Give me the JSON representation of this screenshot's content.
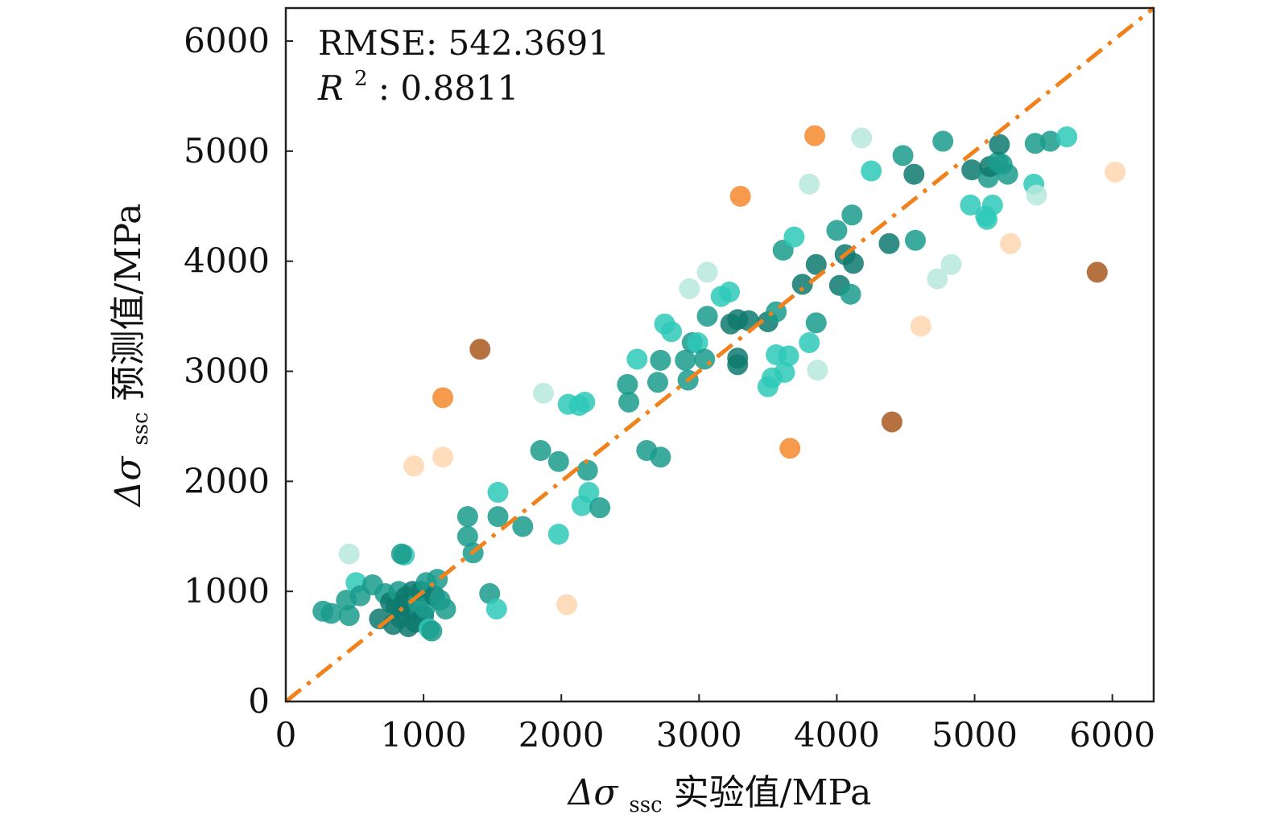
{
  "chart_data": {
    "type": "scatter",
    "xlim": [
      0,
      6300
    ],
    "ylim": [
      0,
      6300
    ],
    "x_ticks": [
      0,
      1000,
      2000,
      3000,
      4000,
      5000,
      6000
    ],
    "y_ticks": [
      0,
      1000,
      2000,
      3000,
      4000,
      5000,
      6000
    ],
    "x_tick_labels": [
      "0",
      "1000",
      "2000",
      "3000",
      "4000",
      "5000",
      "6000"
    ],
    "y_tick_labels": [
      "0",
      "1000",
      "2000",
      "3000",
      "4000",
      "5000",
      "6000"
    ],
    "xlabel": {
      "delta": "Δσ",
      "sub": "ssc",
      "text": " 实验值/MPa"
    },
    "ylabel": {
      "delta": "Δσ",
      "sub": "ssc",
      "text": " 预测值/MPa"
    },
    "annotations": {
      "rmse_label": "RMSE: 542.3691",
      "r2_symbol": "R",
      "r2_sup": "2",
      "r2_value": ": 0.8811"
    },
    "reference_line": {
      "style": "dash-dot",
      "color": "#f0821e",
      "from": [
        0,
        0
      ],
      "to": [
        6300,
        6300
      ]
    },
    "colors": {
      "c1": "#0e7a6e",
      "c2": "#1a9b8c",
      "c3": "#2ec9b8",
      "c4": "#b7e9dc",
      "o1": "#f58a2e",
      "o2": "#f3a46a",
      "o3": "#fed6b0",
      "o4": "#a9581e"
    },
    "points": [
      {
        "x": 1000,
        "y": 600,
        "c": "c1"
      },
      {
        "x": 1500,
        "y": 820,
        "c": "c3"
      }
    ],
    "points_all": [
      [
        270,
        820,
        "c2"
      ],
      [
        330,
        800,
        "c2"
      ],
      [
        440,
        920,
        "c2"
      ],
      [
        460,
        780,
        "c2"
      ],
      [
        460,
        1340,
        "c4"
      ],
      [
        510,
        1080,
        "c3"
      ],
      [
        540,
        960,
        "c2"
      ],
      [
        630,
        1060,
        "c2"
      ],
      [
        680,
        750,
        "c1"
      ],
      [
        720,
        980,
        "c2"
      ],
      [
        760,
        900,
        "c1"
      ],
      [
        780,
        700,
        "c1"
      ],
      [
        800,
        860,
        "c1"
      ],
      [
        820,
        1000,
        "c2"
      ],
      [
        830,
        760,
        "c1"
      ],
      [
        850,
        880,
        "c1"
      ],
      [
        860,
        1330,
        "c3"
      ],
      [
        840,
        1340,
        "c2"
      ],
      [
        870,
        950,
        "c1"
      ],
      [
        890,
        680,
        "c1"
      ],
      [
        900,
        820,
        "c1"
      ],
      [
        920,
        1000,
        "c1"
      ],
      [
        940,
        720,
        "c1"
      ],
      [
        960,
        900,
        "c2"
      ],
      [
        980,
        1000,
        "c1"
      ],
      [
        1000,
        780,
        "c1"
      ],
      [
        1010,
        850,
        "c2"
      ],
      [
        1020,
        1080,
        "c2"
      ],
      [
        1040,
        660,
        "c3"
      ],
      [
        1060,
        640,
        "c2"
      ],
      [
        1080,
        960,
        "c1"
      ],
      [
        1100,
        1110,
        "c2"
      ],
      [
        1120,
        920,
        "c2"
      ],
      [
        1160,
        840,
        "c2"
      ],
      [
        1320,
        1680,
        "c2"
      ],
      [
        1320,
        1500,
        "c2"
      ],
      [
        1360,
        1350,
        "c2"
      ],
      [
        1410,
        3200,
        "o4"
      ],
      [
        1140,
        2760,
        "o1"
      ],
      [
        1140,
        2220,
        "o3"
      ],
      [
        930,
        2140,
        "o3"
      ],
      [
        1480,
        980,
        "c2"
      ],
      [
        1530,
        840,
        "c3"
      ],
      [
        1540,
        1900,
        "c3"
      ],
      [
        1540,
        1680,
        "c2"
      ],
      [
        1720,
        1590,
        "c2"
      ],
      [
        1850,
        2280,
        "c2"
      ],
      [
        1870,
        2800,
        "c4"
      ],
      [
        1980,
        2180,
        "c2"
      ],
      [
        1980,
        1520,
        "c3"
      ],
      [
        2040,
        880,
        "o3"
      ],
      [
        2050,
        2700,
        "c3"
      ],
      [
        2130,
        2690,
        "c3"
      ],
      [
        2170,
        2720,
        "c3"
      ],
      [
        2150,
        1780,
        "c3"
      ],
      [
        2190,
        2100,
        "c2"
      ],
      [
        2200,
        1900,
        "c3"
      ],
      [
        2280,
        1760,
        "c2"
      ],
      [
        2480,
        2880,
        "c2"
      ],
      [
        2490,
        2720,
        "c2"
      ],
      [
        2550,
        3110,
        "c3"
      ],
      [
        2620,
        2280,
        "c2"
      ],
      [
        2700,
        2900,
        "c2"
      ],
      [
        2720,
        2220,
        "c2"
      ],
      [
        2720,
        3100,
        "c2"
      ],
      [
        2750,
        3430,
        "c3"
      ],
      [
        2800,
        3360,
        "c3"
      ],
      [
        2930,
        3750,
        "c4"
      ],
      [
        2900,
        3100,
        "c2"
      ],
      [
        2920,
        2920,
        "c2"
      ],
      [
        2950,
        3260,
        "c2"
      ],
      [
        2990,
        3260,
        "c3"
      ],
      [
        3040,
        3110,
        "c2"
      ],
      [
        3060,
        3900,
        "c4"
      ],
      [
        3060,
        3500,
        "c2"
      ],
      [
        3160,
        3680,
        "c3"
      ],
      [
        3220,
        3720,
        "c3"
      ],
      [
        3230,
        3430,
        "c1"
      ],
      [
        3280,
        3470,
        "c1"
      ],
      [
        3280,
        3120,
        "c1"
      ],
      [
        3280,
        3060,
        "c1"
      ],
      [
        3300,
        4590,
        "o1"
      ],
      [
        3360,
        3460,
        "c1"
      ],
      [
        3500,
        3450,
        "c1"
      ],
      [
        3500,
        2860,
        "c3"
      ],
      [
        3530,
        2940,
        "c3"
      ],
      [
        3560,
        3540,
        "c2"
      ],
      [
        3560,
        3150,
        "c3"
      ],
      [
        3610,
        4100,
        "c2"
      ],
      [
        3620,
        2990,
        "c3"
      ],
      [
        3650,
        3140,
        "c3"
      ],
      [
        3660,
        2300,
        "o1"
      ],
      [
        3690,
        4220,
        "c3"
      ],
      [
        3750,
        3790,
        "c1"
      ],
      [
        3800,
        3260,
        "c3"
      ],
      [
        3800,
        4700,
        "c4"
      ],
      [
        3840,
        5140,
        "o1"
      ],
      [
        3850,
        3970,
        "c1"
      ],
      [
        3850,
        3440,
        "c2"
      ],
      [
        3860,
        3010,
        "c4"
      ],
      [
        4000,
        4280,
        "c2"
      ],
      [
        4020,
        3780,
        "c1"
      ],
      [
        4060,
        4060,
        "c1"
      ],
      [
        4100,
        3700,
        "c2"
      ],
      [
        4110,
        4420,
        "c2"
      ],
      [
        4120,
        3980,
        "c1"
      ],
      [
        4180,
        5120,
        "c4"
      ],
      [
        4250,
        4820,
        "c3"
      ],
      [
        4380,
        4160,
        "c1"
      ],
      [
        4400,
        2540,
        "o4"
      ],
      [
        4480,
        4960,
        "c2"
      ],
      [
        4560,
        4790,
        "c1"
      ],
      [
        4570,
        4190,
        "c2"
      ],
      [
        4610,
        3410,
        "o3"
      ],
      [
        4730,
        3840,
        "c4"
      ],
      [
        4770,
        5090,
        "c2"
      ],
      [
        4830,
        3970,
        "c4"
      ],
      [
        4970,
        4510,
        "c3"
      ],
      [
        4980,
        4830,
        "c1"
      ],
      [
        5080,
        4410,
        "c3"
      ],
      [
        5090,
        4380,
        "c3"
      ],
      [
        5100,
        4760,
        "c2"
      ],
      [
        5110,
        4860,
        "c1"
      ],
      [
        5130,
        4510,
        "c3"
      ],
      [
        5170,
        4900,
        "c2"
      ],
      [
        5180,
        5060,
        "c1"
      ],
      [
        5200,
        4880,
        "c2"
      ],
      [
        5240,
        4790,
        "c2"
      ],
      [
        5260,
        4160,
        "o3"
      ],
      [
        5430,
        4700,
        "c3"
      ],
      [
        5450,
        4600,
        "c4"
      ],
      [
        5440,
        5070,
        "c2"
      ],
      [
        5550,
        5090,
        "c2"
      ],
      [
        5670,
        5130,
        "c3"
      ],
      [
        5890,
        3900,
        "o4"
      ],
      [
        6020,
        4810,
        "o3"
      ]
    ]
  }
}
